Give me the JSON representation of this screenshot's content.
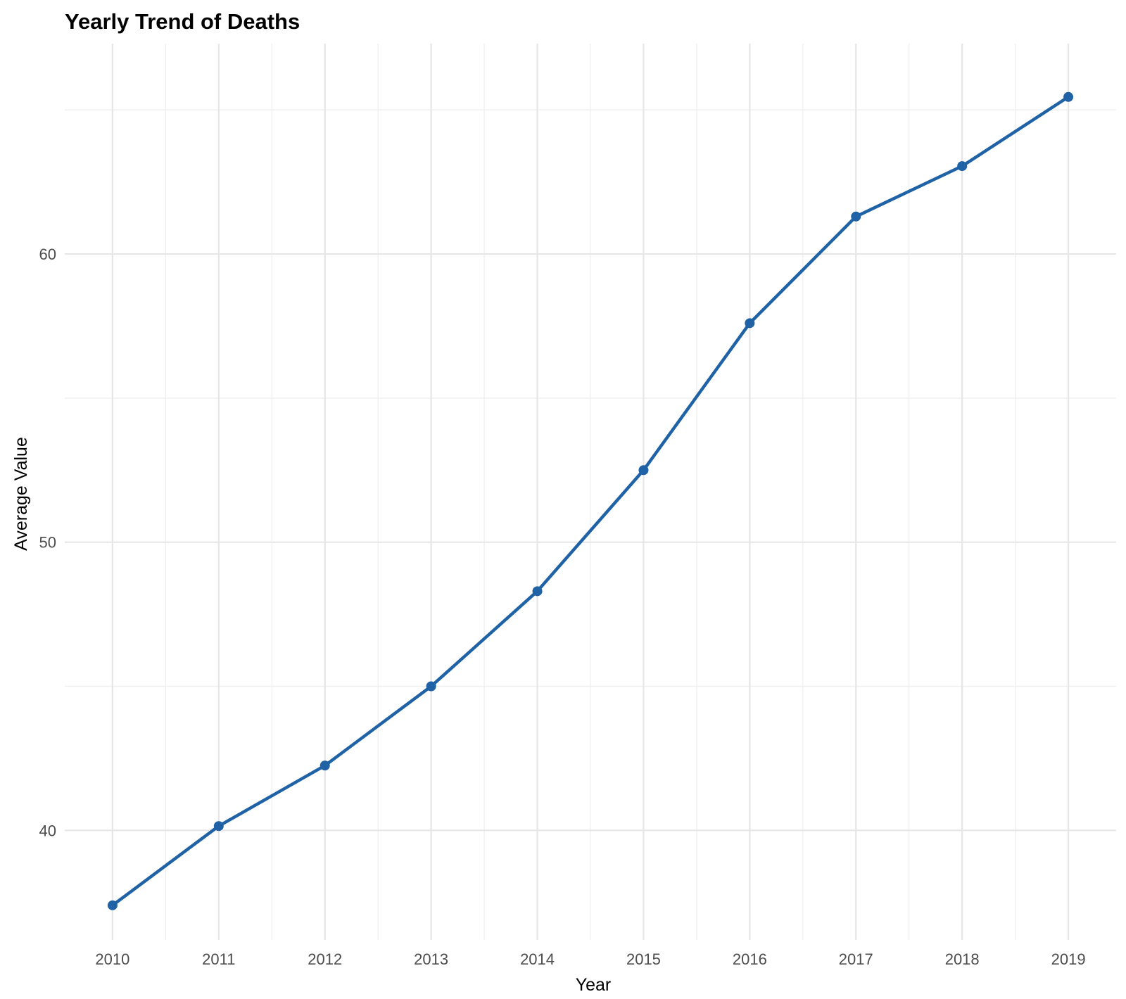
{
  "chart_data": {
    "type": "line",
    "title": "Yearly Trend of Deaths",
    "xlabel": "Year",
    "ylabel": "Average Value",
    "x": [
      2010,
      2011,
      2012,
      2013,
      2014,
      2015,
      2016,
      2017,
      2018,
      2019
    ],
    "series": [
      {
        "values": [
          37.4,
          40.15,
          42.25,
          45.0,
          48.3,
          52.5,
          57.6,
          61.3,
          63.05,
          65.45
        ]
      }
    ],
    "xlim": [
      2009.55,
      2019.45
    ],
    "ylim": [
      36.2,
      67.3
    ],
    "x_ticks": [
      "2010",
      "2011",
      "2012",
      "2013",
      "2014",
      "2015",
      "2016",
      "2017",
      "2018",
      "2019"
    ],
    "y_ticks": [
      40,
      50,
      60
    ],
    "y_tick_labels": [
      "40",
      "50",
      "60"
    ],
    "y_minor_ticks": [
      45,
      55,
      65
    ],
    "grid": true,
    "legend": "none",
    "colors": {
      "line": "#1f62a6",
      "grid": "#e6e6e6"
    }
  }
}
